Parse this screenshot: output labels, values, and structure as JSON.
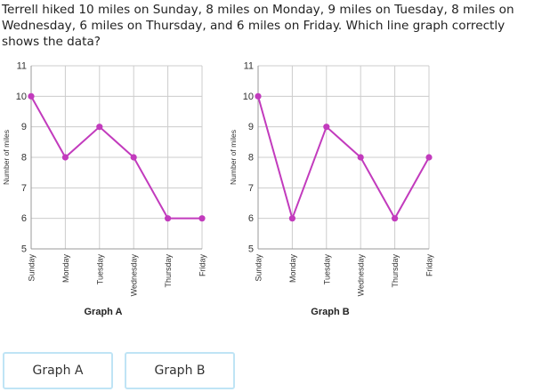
{
  "question": "Terrell hiked 10 miles on Sunday, 8 miles on Monday, 9 miles on Tuesday, 8 miles on Wednesday, 6 miles on Thursday, and 6 miles on Friday. Which line graph correctly shows the data?",
  "answers": [
    "Graph A",
    "Graph B"
  ],
  "colors": {
    "line": "#c23bbd",
    "grid": "#cccccc",
    "axis": "#999999"
  },
  "chart_data": [
    {
      "type": "line",
      "title": "Graph A",
      "categories": [
        "Sunday",
        "Monday",
        "Tuesday",
        "Wednesday",
        "Thursday",
        "Friday"
      ],
      "values": [
        10,
        8,
        9,
        8,
        6,
        6
      ],
      "xlabel": "",
      "ylabel": "Number of miles",
      "ylim": [
        5,
        11
      ],
      "yticks": [
        5,
        6,
        7,
        8,
        9,
        10,
        11
      ],
      "grid": true
    },
    {
      "type": "line",
      "title": "Graph B",
      "categories": [
        "Sunday",
        "Monday",
        "Tuesday",
        "Wednesday",
        "Thursday",
        "Friday"
      ],
      "values": [
        10,
        6,
        9,
        8,
        6,
        8
      ],
      "xlabel": "",
      "ylabel": "Number of miles",
      "ylim": [
        5,
        11
      ],
      "yticks": [
        5,
        6,
        7,
        8,
        9,
        10,
        11
      ],
      "grid": true
    }
  ]
}
